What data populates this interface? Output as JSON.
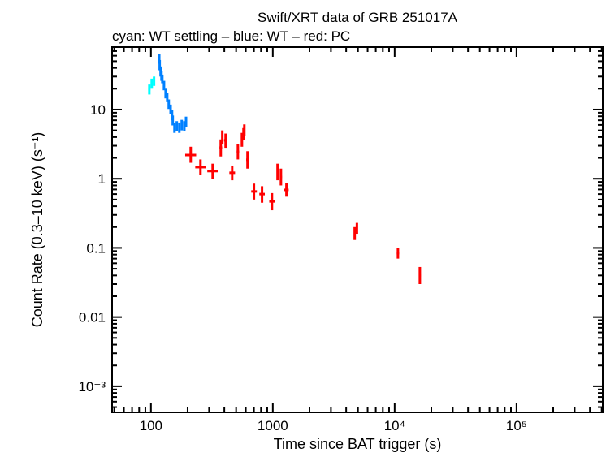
{
  "chart_data": {
    "type": "scatter",
    "title": "Swift/XRT data of GRB 251017A",
    "subtitle": "cyan: WT settling – blue: WT – red: PC",
    "xlabel": "Time since BAT trigger (s)",
    "ylabel": "Count Rate (0.3–10 keV) (s⁻¹)",
    "xscale": "log",
    "yscale": "log",
    "xlim": [
      48,
      510000
    ],
    "ylim": [
      0.00042,
      80
    ],
    "xticks": [
      {
        "v": 100,
        "label": "100"
      },
      {
        "v": 1000,
        "label": "1000"
      },
      {
        "v": 10000,
        "label": "10⁴"
      },
      {
        "v": 100000,
        "label": "10⁵"
      }
    ],
    "yticks": [
      {
        "v": 10,
        "label": "10"
      },
      {
        "v": 1,
        "label": "1"
      },
      {
        "v": 0.1,
        "label": "0.1"
      },
      {
        "v": 0.01,
        "label": "0.01"
      },
      {
        "v": 0.001,
        "label": "10⁻³"
      }
    ],
    "grid": false,
    "legend": "none",
    "series": [
      {
        "name": "WT settling",
        "color": "#00ffff",
        "points": [
          [
            97,
            19.6,
            95,
            99,
            16.5,
            23
          ],
          [
            101.5,
            23.7,
            100,
            103,
            20,
            28
          ],
          [
            106,
            25.7,
            104,
            108,
            22,
            30
          ]
        ]
      },
      {
        "name": "WT",
        "color": "#0080ff",
        "points": [
          [
            117,
            55,
            116,
            118,
            46,
            64
          ],
          [
            118,
            44,
            117,
            119,
            37,
            52
          ],
          [
            120,
            35.6,
            119,
            121,
            30,
            42
          ],
          [
            122,
            31,
            121,
            123,
            26,
            36
          ],
          [
            124,
            27.9,
            123,
            125,
            24,
            32
          ],
          [
            128,
            22.5,
            127,
            129,
            19,
            26
          ],
          [
            132,
            17.2,
            131,
            133,
            14.5,
            20
          ],
          [
            136,
            15,
            135,
            137,
            12.8,
            17.5
          ],
          [
            140,
            12,
            139,
            141,
            10.2,
            14
          ],
          [
            145,
            10,
            144,
            146,
            8.5,
            11.8
          ],
          [
            149,
            8.3,
            148,
            150,
            7,
            9.8
          ],
          [
            151,
            7,
            150,
            152,
            5.9,
            8.2
          ],
          [
            156,
            5.4,
            154,
            158,
            4.6,
            6.4
          ],
          [
            163,
            5.8,
            161,
            165,
            4.9,
            6.8
          ],
          [
            171,
            5.5,
            169,
            173,
            4.6,
            6.5
          ],
          [
            179,
            6,
            177,
            181,
            5,
            7.1
          ],
          [
            188,
            5.8,
            186,
            190,
            4.9,
            6.8
          ],
          [
            194,
            6.7,
            192,
            196,
            5.6,
            7.9
          ]
        ]
      },
      {
        "name": "PC",
        "color": "#ff0000",
        "points": [
          [
            212,
            2.2,
            191,
            235,
            1.7,
            2.9
          ],
          [
            255,
            1.47,
            231,
            281,
            1.15,
            1.9
          ],
          [
            321,
            1.29,
            290,
            353,
            1.0,
            1.65
          ],
          [
            464,
            1.22,
            440,
            490,
            0.95,
            1.55
          ],
          [
            374,
            2.81,
            365,
            384,
            2.1,
            3.7
          ],
          [
            385,
            4.0,
            378,
            392,
            3.2,
            5.0
          ],
          [
            410,
            3.59,
            398,
            422,
            2.8,
            4.5
          ],
          [
            517,
            2.45,
            505,
            530,
            1.9,
            3.2
          ],
          [
            558,
            3.68,
            550,
            566,
            2.9,
            4.6
          ],
          [
            575,
            4.45,
            568,
            582,
            3.6,
            5.4
          ],
          [
            584,
            5.1,
            578,
            590,
            4.2,
            6.1
          ],
          [
            620,
            1.88,
            605,
            635,
            1.4,
            2.5
          ],
          [
            700,
            0.655,
            665,
            740,
            0.5,
            0.85
          ],
          [
            816,
            0.6,
            775,
            860,
            0.45,
            0.78
          ],
          [
            984,
            0.47,
            935,
            1035,
            0.35,
            0.62
          ],
          [
            1094,
            1.25,
            1075,
            1115,
            0.95,
            1.65
          ],
          [
            1166,
            1.06,
            1145,
            1190,
            0.8,
            1.4
          ],
          [
            1294,
            0.69,
            1240,
            1350,
            0.55,
            0.87
          ],
          [
            4700,
            0.16,
            4650,
            4750,
            0.13,
            0.2
          ],
          [
            4900,
            0.19,
            4850,
            4950,
            0.16,
            0.23
          ],
          [
            10640,
            0.084,
            10400,
            10900,
            0.07,
            0.1
          ],
          [
            16100,
            0.04,
            15800,
            16400,
            0.03,
            0.053
          ]
        ]
      }
    ]
  }
}
